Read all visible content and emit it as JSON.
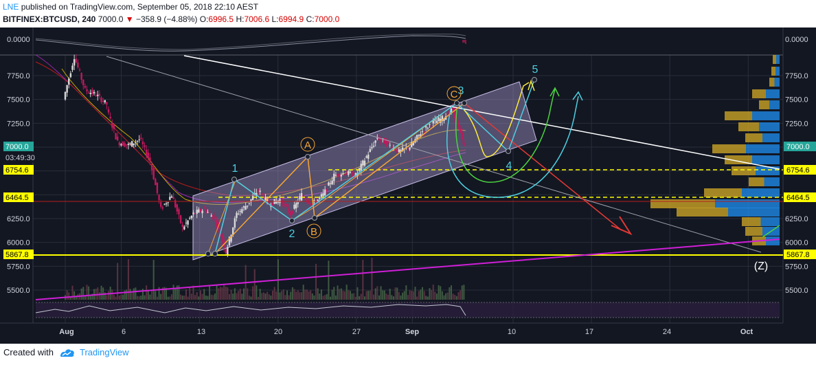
{
  "header": {
    "author": "LNE",
    "published_text": "published on TradingView.com, September 05, 2018 22:10 AEST",
    "symbol": "BITFINEX:BTCUSD, 240",
    "last": "7000.0",
    "arrow": "▼",
    "change": "−358.9 (−4.88%)",
    "o_label": "O:",
    "o_value": "6996.5",
    "h_label": "H:",
    "h_value": "7006.6",
    "l_label": "L:",
    "l_value": "6994.9",
    "c_label": "C:",
    "c_value": "7000.0"
  },
  "footer": {
    "created_with": "Created with",
    "brand": "TradingView"
  },
  "colors": {
    "background": "#131722",
    "grid": "#2a2e39",
    "candle_up": "#d9d9d9",
    "candle_down": "#c2185b",
    "channel": "#a294c9",
    "white_line": "#ffffff",
    "magenta_line": "#d01fd8",
    "yellow": "#ffff00",
    "orange": "#f7a733",
    "cyan": "#4dd0e1",
    "red": "#e53935",
    "green": "#4cd440",
    "red_line": "#c62828"
  },
  "chart_data": {
    "type": "candlestick",
    "ylim": [
      5380,
      7980
    ],
    "y_ticks": [
      "7750.0",
      "7500.0",
      "7250.0",
      "7000.0",
      "6750.0",
      "6500.0",
      "6250.0",
      "6000.0",
      "5750.0",
      "5500.0"
    ],
    "x_ticks": [
      "Aug",
      "6",
      "13",
      "20",
      "27",
      "Sep",
      "10",
      "17",
      "24",
      "Oct"
    ],
    "price_labels": {
      "current_price": "7000.0",
      "countdown": "03:49:30",
      "level_high": "6754.6",
      "level_mid": "6464.5",
      "level_low": "5867.8"
    },
    "horizontal_levels": [
      6754.6,
      6464.5,
      5867.8
    ],
    "oscillator": {
      "zero_label": "0.0000",
      "zero_label_right": "0.0000"
    },
    "candles_approx": [
      {
        "date": "Jul 31",
        "open": 7500,
        "close": 7950
      },
      {
        "date": "Aug 1",
        "open": 7950,
        "close": 7600
      },
      {
        "date": "Aug 2",
        "open": 7600,
        "close": 7550
      },
      {
        "date": "Aug 3",
        "open": 7550,
        "close": 7450
      },
      {
        "date": "Aug 4",
        "open": 7400,
        "close": 7050
      },
      {
        "date": "Aug 5",
        "open": 7050,
        "close": 7020
      },
      {
        "date": "Aug 6",
        "open": 7020,
        "close": 7080
      },
      {
        "date": "Aug 7",
        "open": 7100,
        "close": 6850
      },
      {
        "date": "Aug 8",
        "open": 6850,
        "close": 6350
      },
      {
        "date": "Aug 9",
        "open": 6350,
        "close": 6500
      },
      {
        "date": "Aug 10",
        "open": 6500,
        "close": 6150
      },
      {
        "date": "Aug 11",
        "open": 6150,
        "close": 6300
      },
      {
        "date": "Aug 12",
        "open": 6300,
        "close": 6350
      },
      {
        "date": "Aug 13",
        "open": 6350,
        "close": 6250
      },
      {
        "date": "Aug 14",
        "open": 6250,
        "close": 5900
      },
      {
        "date": "Aug 15",
        "open": 5900,
        "close": 6300
      },
      {
        "date": "Aug 16",
        "open": 6300,
        "close": 6400
      },
      {
        "date": "Aug 17",
        "open": 6400,
        "close": 6550
      },
      {
        "date": "Aug 18",
        "open": 6550,
        "close": 6400
      },
      {
        "date": "Aug 19",
        "open": 6400,
        "close": 6450
      },
      {
        "date": "Aug 20",
        "open": 6450,
        "close": 6300
      },
      {
        "date": "Aug 21",
        "open": 6300,
        "close": 6500
      },
      {
        "date": "Aug 22",
        "open": 6500,
        "close": 6400
      },
      {
        "date": "Aug 23",
        "open": 6400,
        "close": 6500
      },
      {
        "date": "Aug 24",
        "open": 6500,
        "close": 6700
      },
      {
        "date": "Aug 25",
        "open": 6700,
        "close": 6730
      },
      {
        "date": "Aug 26",
        "open": 6730,
        "close": 6700
      },
      {
        "date": "Aug 27",
        "open": 6700,
        "close": 6900
      },
      {
        "date": "Aug 28",
        "open": 6900,
        "close": 7100
      },
      {
        "date": "Aug 29",
        "open": 7100,
        "close": 7030
      },
      {
        "date": "Aug 30",
        "open": 7030,
        "close": 6950
      },
      {
        "date": "Aug 31",
        "open": 6950,
        "close": 7000
      },
      {
        "date": "Sep 1",
        "open": 7000,
        "close": 7150
      },
      {
        "date": "Sep 2",
        "open": 7150,
        "close": 7250
      },
      {
        "date": "Sep 3",
        "open": 7250,
        "close": 7300
      },
      {
        "date": "Sep 4",
        "open": 7300,
        "close": 7400
      },
      {
        "date": "Sep 5",
        "open": 7400,
        "close": 7000
      }
    ],
    "annotations": {
      "wave_labels": [
        "1",
        "2",
        "3",
        "4",
        "5"
      ],
      "abc_labels": [
        "A",
        "B",
        "C"
      ],
      "z_label": "(Z)"
    }
  }
}
